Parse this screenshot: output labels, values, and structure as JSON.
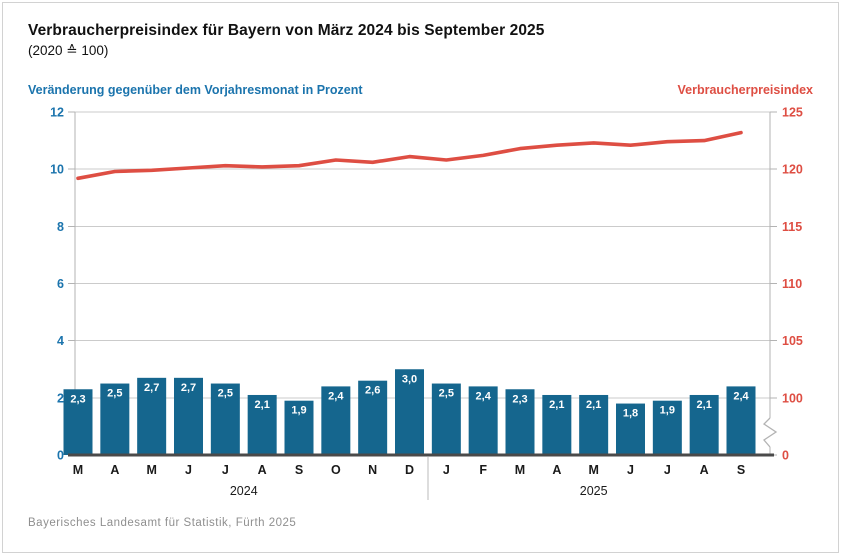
{
  "header": {
    "title": "Verbraucherpreisindex für Bayern von März 2024 bis September 2025",
    "subtitle": "(2020 ≙ 100)"
  },
  "axis_titles": {
    "left": "Veränderung gegenüber dem Vorjahresmonat in Prozent",
    "right": "Verbraucherpreisindex"
  },
  "footer": {
    "source": "Bayerisches Landesamt für Statistik, Fürth 2025"
  },
  "colors": {
    "bar": "#15668e",
    "line": "#de4e43",
    "left_text": "#1b74ad",
    "right_text": "#de4e43",
    "gridline": "#cbcbcb",
    "axis_line": "#b3b3b3",
    "baseline": "#4a4a4a",
    "month_label": "#1a1a1a",
    "bar_label": "#ffffff",
    "separator": "#bbbbbb"
  },
  "chart_data": {
    "type": "bar",
    "subtype": "bar-line-combo",
    "categories": [
      "M",
      "A",
      "M",
      "J",
      "J",
      "A",
      "S",
      "O",
      "N",
      "D",
      "J",
      "F",
      "M",
      "A",
      "M",
      "J",
      "J",
      "A",
      "S"
    ],
    "year_groups": [
      {
        "label": "2024",
        "start": 0,
        "count": 10
      },
      {
        "label": "2025",
        "start": 10,
        "count": 9
      }
    ],
    "series": [
      {
        "name": "Veränderung gegenüber dem Vorjahresmonat in Prozent",
        "type": "bar",
        "axis": "left",
        "values": [
          2.3,
          2.5,
          2.7,
          2.7,
          2.5,
          2.1,
          1.9,
          2.4,
          2.6,
          3.0,
          2.5,
          2.4,
          2.3,
          2.1,
          2.1,
          1.8,
          1.9,
          2.1,
          2.4
        ],
        "labels": [
          "2,3",
          "2,5",
          "2,7",
          "2,7",
          "2,5",
          "2,1",
          "1,9",
          "2,4",
          "2,6",
          "3,0",
          "2,5",
          "2,4",
          "2,3",
          "2,1",
          "2,1",
          "1,8",
          "1,9",
          "2,1",
          "2,4"
        ]
      },
      {
        "name": "Verbraucherpreisindex",
        "type": "line",
        "axis": "right",
        "values": [
          119.2,
          119.8,
          119.9,
          120.1,
          120.3,
          120.2,
          120.3,
          120.8,
          120.6,
          121.1,
          120.8,
          121.2,
          121.8,
          122.1,
          122.3,
          122.1,
          122.4,
          122.5,
          123.2
        ]
      }
    ],
    "left_axis": {
      "ticks": [
        12,
        10,
        8,
        6,
        4,
        2,
        0
      ],
      "range": [
        0,
        12
      ],
      "title": "Veränderung gegenüber dem Vorjahresmonat in Prozent"
    },
    "right_axis": {
      "ticks": [
        125,
        120,
        115,
        110,
        105,
        100
      ],
      "zero_tick": 0,
      "upper_range": [
        100,
        125
      ],
      "axis_break": true,
      "title": "Verbraucherpreisindex"
    },
    "grid": true,
    "legend_position": "none",
    "title": "Verbraucherpreisindex für Bayern von März 2024 bis September 2025",
    "subtitle": "(2020 ≙ 100)"
  }
}
